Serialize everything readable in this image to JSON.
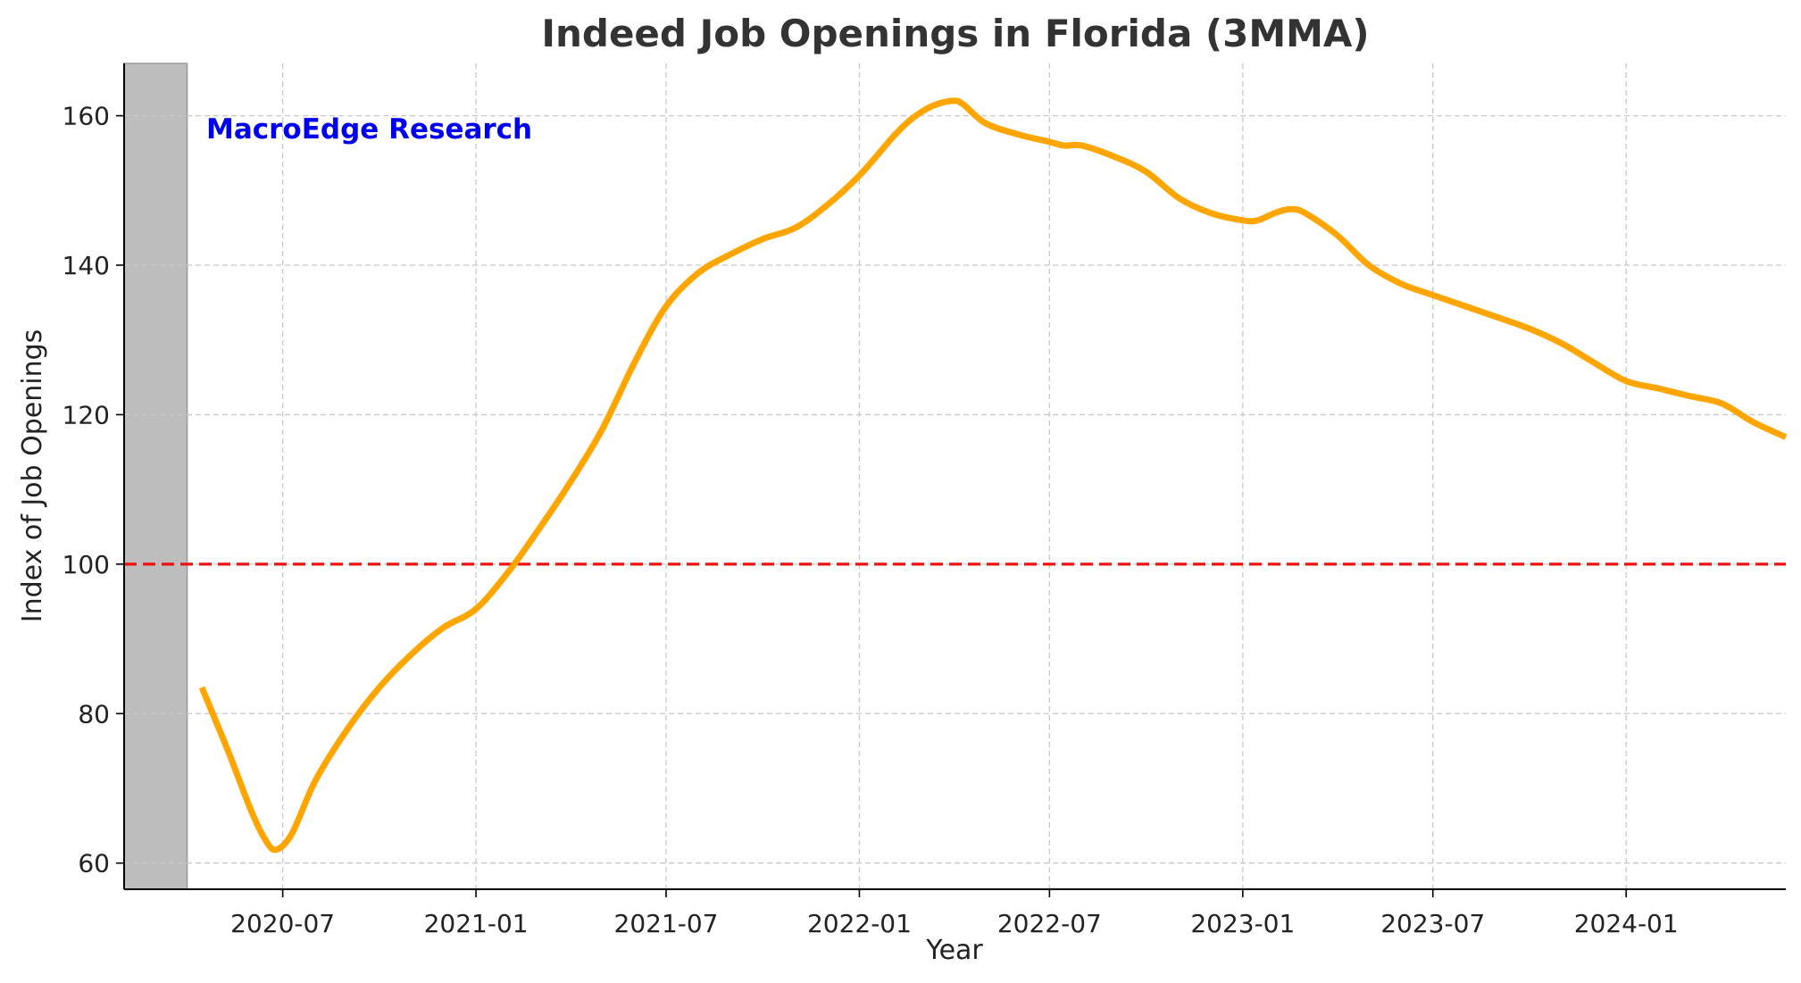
{
  "chart_data": {
    "type": "line",
    "title": "Indeed Job Openings in Florida (3MMA)",
    "xlabel": "Year",
    "ylabel": "Index of Job Openings",
    "xlim": [
      "2020-02-01",
      "2024-06-01"
    ],
    "ylim": [
      56.5,
      167
    ],
    "y_ticks": [
      60,
      80,
      100,
      120,
      140,
      160
    ],
    "x_ticks": [
      "2020-07",
      "2021-01",
      "2021-07",
      "2022-01",
      "2022-07",
      "2023-01",
      "2023-07",
      "2024-01"
    ],
    "grid": true,
    "watermark": "MacroEdge Research",
    "reference_line": {
      "y": 100,
      "color": "#ee1111",
      "style": "dashed"
    },
    "shaded_region": {
      "x_start": "2020-02-01",
      "x_end": "2020-04-01",
      "color": "#bdbdbd"
    },
    "series": [
      {
        "color": "#FFA500",
        "x": [
          "2020-04-15",
          "2020-05-10",
          "2020-06-01",
          "2020-06-15",
          "2020-06-25",
          "2020-07-10",
          "2020-08-01",
          "2020-09-01",
          "2020-10-01",
          "2020-11-01",
          "2020-12-01",
          "2021-01-01",
          "2021-02-01",
          "2021-03-01",
          "2021-04-01",
          "2021-05-01",
          "2021-06-01",
          "2021-07-01",
          "2021-08-01",
          "2021-09-01",
          "2021-10-01",
          "2021-11-01",
          "2021-12-01",
          "2022-01-01",
          "2022-02-01",
          "2022-02-15",
          "2022-03-01",
          "2022-03-15",
          "2022-04-01",
          "2022-04-10",
          "2022-05-01",
          "2022-06-01",
          "2022-07-01",
          "2022-07-15",
          "2022-08-01",
          "2022-09-01",
          "2022-10-01",
          "2022-11-01",
          "2022-12-01",
          "2023-01-01",
          "2023-01-15",
          "2023-02-01",
          "2023-02-15",
          "2023-03-01",
          "2023-04-01",
          "2023-05-01",
          "2023-06-01",
          "2023-07-01",
          "2023-08-01",
          "2023-09-01",
          "2023-10-01",
          "2023-11-01",
          "2023-12-01",
          "2024-01-01",
          "2024-02-01",
          "2024-03-01",
          "2024-04-01",
          "2024-05-01",
          "2024-06-01"
        ],
        "y": [
          83.5,
          75,
          67,
          63,
          61.8,
          64,
          71,
          78,
          83.5,
          88,
          91.5,
          94,
          99,
          104.5,
          111,
          118,
          127,
          134.5,
          139,
          141.5,
          143.5,
          145,
          148,
          152,
          157,
          159,
          160.5,
          161.5,
          162,
          161.5,
          159,
          157.5,
          156.5,
          156,
          156,
          154.5,
          152.5,
          149,
          147,
          146,
          146,
          147,
          147.5,
          147,
          144,
          140,
          137.5,
          136,
          134.5,
          133,
          131.5,
          129.5,
          127,
          124.5,
          123.5,
          122.5,
          121.5,
          119,
          117
        ]
      }
    ]
  }
}
